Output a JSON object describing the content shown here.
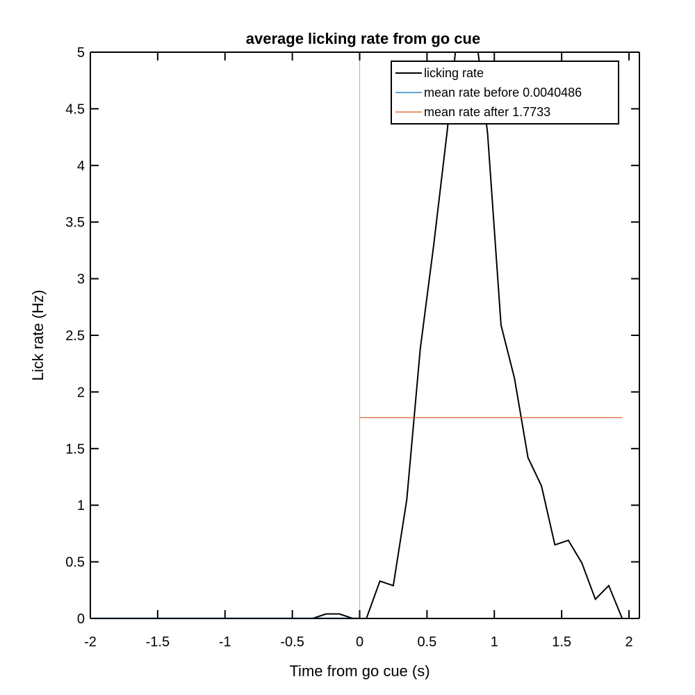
{
  "chart_data": {
    "type": "line",
    "title": "average licking rate from go cue",
    "xlabel": "Time from go cue (s)",
    "ylabel": "Lick rate (Hz)",
    "xlim": [
      -2,
      2
    ],
    "ylim": [
      0,
      5
    ],
    "xticks": [
      -2,
      -1.5,
      -1,
      -0.5,
      0,
      0.5,
      1,
      1.5,
      2
    ],
    "xtick_labels": [
      "-2",
      "-1.5",
      "-1",
      "-0.5",
      "0",
      "0.5",
      "1",
      "1.5",
      "2"
    ],
    "yticks": [
      0,
      0.5,
      1,
      1.5,
      2,
      2.5,
      3,
      3.5,
      4,
      4.5,
      5
    ],
    "ytick_labels": [
      "0",
      "0.5",
      "1",
      "1.5",
      "2",
      "2.5",
      "3",
      "3.5",
      "4",
      "4.5",
      "5"
    ],
    "grid": false,
    "legend_position": "top-right",
    "series": [
      {
        "name": "licking rate",
        "color": "#000000",
        "x": [
          -2,
          -1.95,
          -1.85,
          -1.75,
          -1.65,
          -1.55,
          -1.45,
          -1.35,
          -1.25,
          -1.15,
          -1.05,
          -0.95,
          -0.85,
          -0.75,
          -0.65,
          -0.55,
          -0.45,
          -0.35,
          -0.25,
          -0.15,
          -0.05,
          0.05,
          0.15,
          0.25,
          0.35,
          0.45,
          0.55,
          0.65,
          0.75,
          0.85,
          0.95,
          1.05,
          1.15,
          1.25,
          1.35,
          1.45,
          1.55,
          1.65,
          1.75,
          1.85,
          1.95
        ],
        "y": [
          0,
          0,
          0,
          0,
          0,
          0,
          0,
          0,
          0,
          0,
          0,
          0,
          0,
          0,
          0,
          0,
          0,
          0,
          0.04,
          0.04,
          0,
          0,
          0.33,
          0.29,
          1.05,
          2.38,
          3.3,
          4.3,
          5.45,
          5.3,
          4.28,
          2.59,
          2.12,
          1.42,
          1.17,
          0.65,
          0.69,
          0.49,
          0.17,
          0.29,
          0
        ]
      },
      {
        "name": "mean rate before 0.0040486",
        "color": "#0072BD",
        "x": [
          -2,
          0
        ],
        "y": [
          0.0040486,
          0.0040486
        ]
      },
      {
        "name": "mean rate after 1.7733",
        "color": "#D95319",
        "x": [
          0,
          1.95
        ],
        "y": [
          1.7733,
          1.7733
        ]
      }
    ],
    "annotations": [
      {
        "type": "vline",
        "x": 0,
        "color": "#EDB120"
      }
    ]
  }
}
